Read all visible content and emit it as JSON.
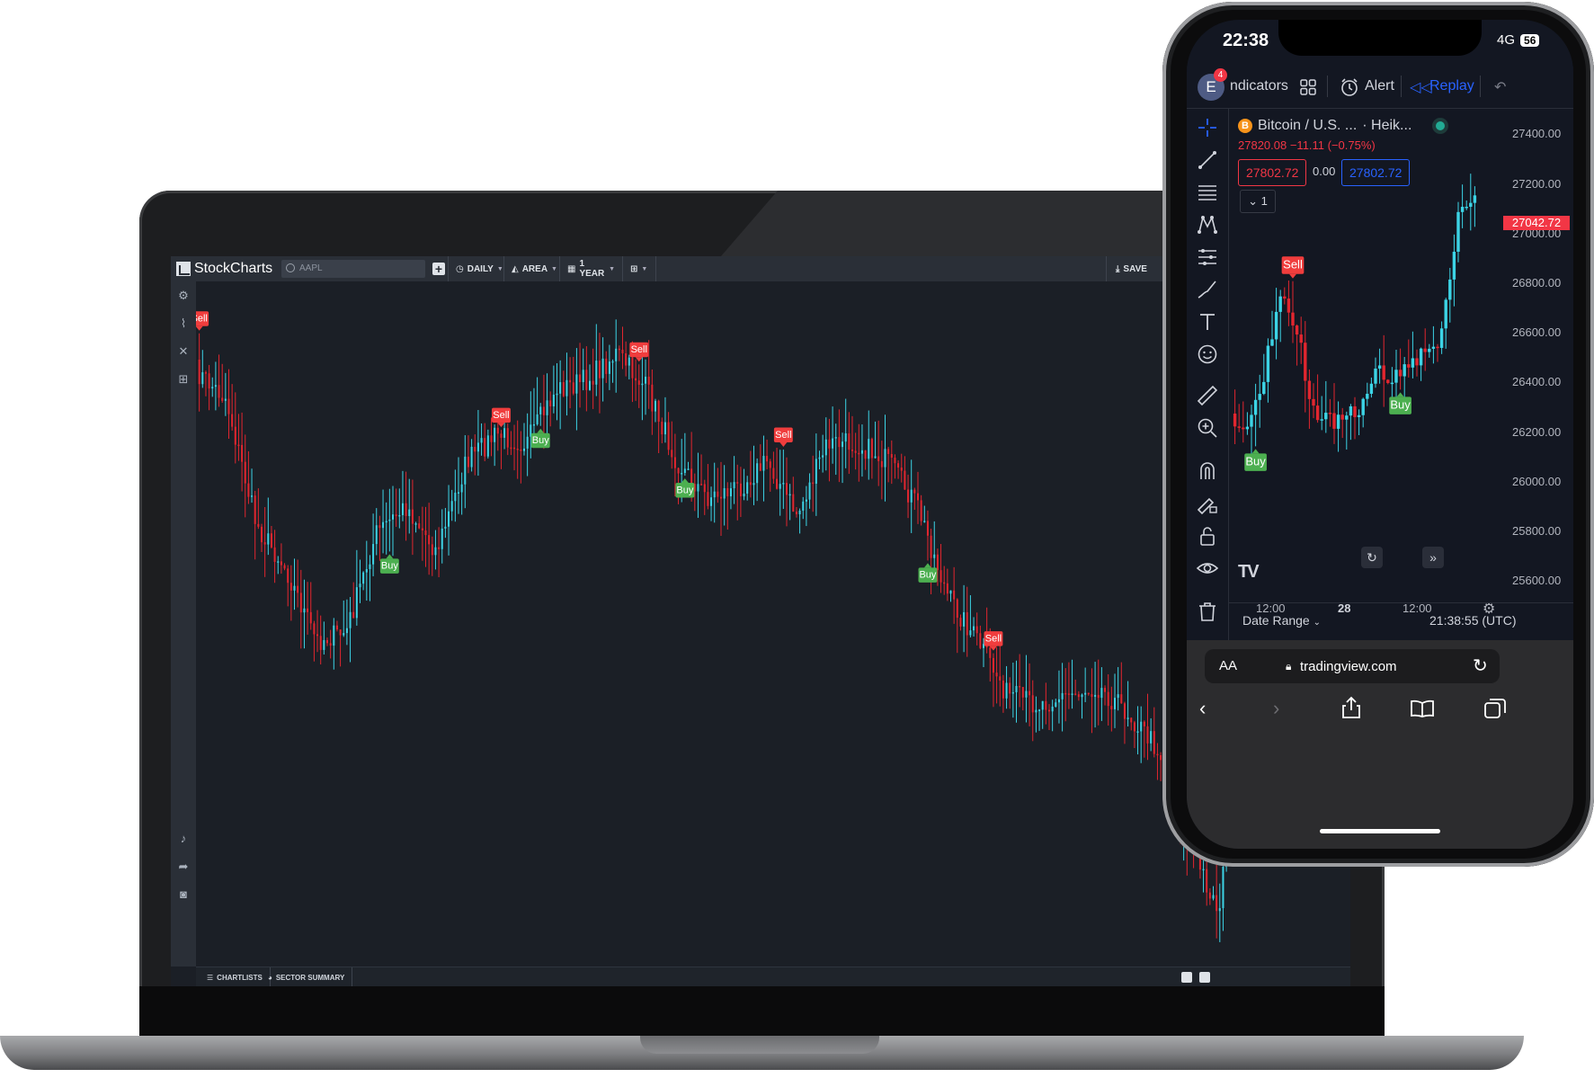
{
  "colors": {
    "bull": "#3cd4e6",
    "bear": "#e2262f",
    "buy_bg": "#4caf50",
    "sell_bg": "#f03d3d",
    "background": "#1b1f26"
  },
  "laptop": {
    "app_name": "StockCharts",
    "search_placeholder": "AAPL",
    "toolbar": {
      "period": "DAILY",
      "chart_type": "AREA",
      "range": "1 YEAR",
      "save": "SAVE"
    },
    "sidebar_icons": [
      "settings-icon",
      "indicator-icon",
      "tools-icon",
      "layout-icon",
      "bell-icon",
      "share-icon",
      "camera-icon"
    ],
    "bottom_tabs": [
      "CHARTLISTS",
      "SECTOR SUMMARY"
    ],
    "signals": [
      {
        "type": "Sell",
        "bar": 0
      },
      {
        "type": "Buy",
        "bar": 58
      },
      {
        "type": "Sell",
        "bar": 92
      },
      {
        "type": "Buy",
        "bar": 104
      },
      {
        "type": "Sell",
        "bar": 134
      },
      {
        "type": "Buy",
        "bar": 148
      },
      {
        "type": "Sell",
        "bar": 178
      },
      {
        "type": "Buy",
        "bar": 222
      },
      {
        "type": "Sell",
        "bar": 242
      },
      {
        "type": "Buy",
        "bar": 326
      }
    ]
  },
  "phone": {
    "status": {
      "time": "22:38",
      "network": "4G",
      "battery": "56"
    },
    "toolbar": {
      "avatar": "E",
      "badge": "4",
      "indicators": "ndicators",
      "alert": "Alert",
      "replay": "Replay"
    },
    "symbol": {
      "name": "Bitcoin / U.S. ...",
      "style": "· Heik...",
      "coin": "B"
    },
    "quote": "27820.08  −11.11 (−0.75%)",
    "bid": "27802.72",
    "spread": "0.00",
    "ask": "27802.72",
    "interval": "1",
    "price_tag": "27042.72",
    "y_labels": [
      "27400.00",
      "27200.00",
      "27000.00",
      "26800.00",
      "26600.00",
      "26400.00",
      "26200.00",
      "26000.00",
      "25800.00",
      "25600.00"
    ],
    "x_labels": [
      "12:00",
      "28",
      "12:00"
    ],
    "signals": [
      {
        "type": "Sell",
        "bar": 14
      },
      {
        "type": "Buy",
        "bar": 5
      },
      {
        "type": "Buy",
        "bar": 40
      }
    ],
    "date_range": "Date Range",
    "clock": "21:38:55 (UTC)",
    "logo": "TV",
    "safari": {
      "aa": "AA",
      "domain": "tradingview.com"
    }
  }
}
